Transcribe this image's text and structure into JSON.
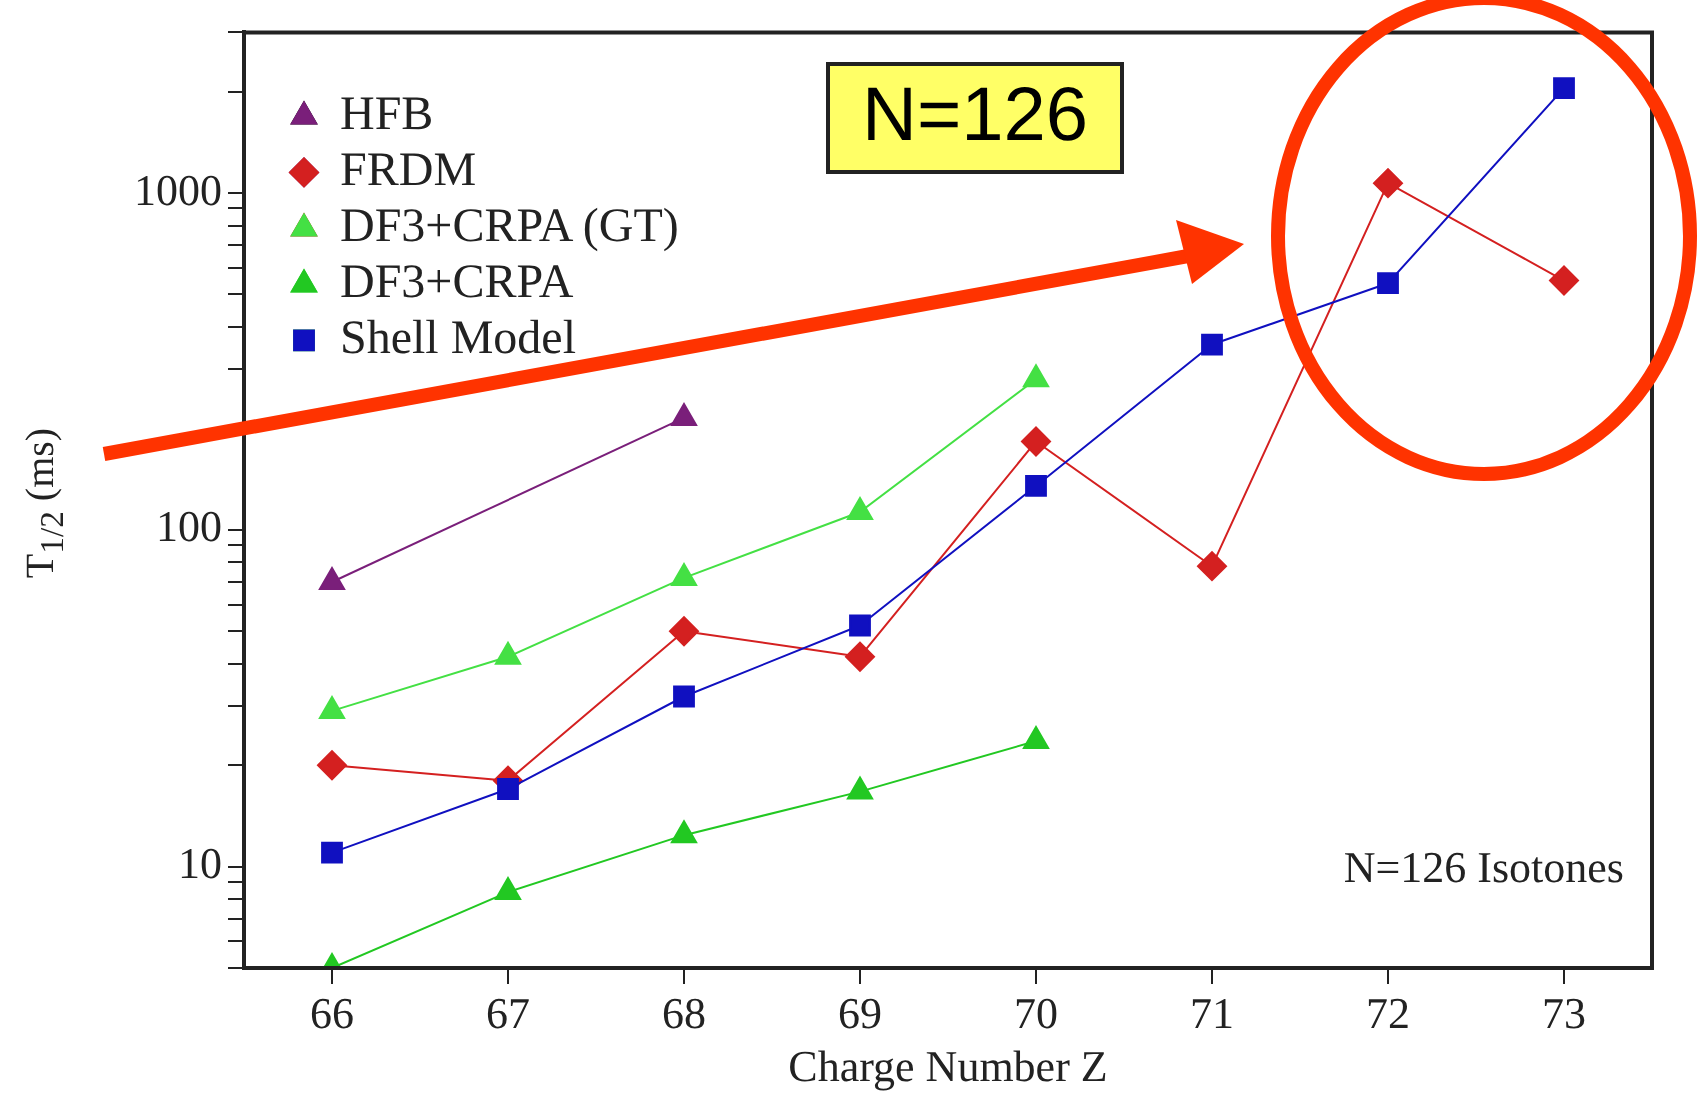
{
  "chart_data": {
    "type": "line",
    "xlabel": "Charge Number Z",
    "ylabel": "T$_{1/2}$ (ms)",
    "log": "y",
    "xlim": [
      65.5,
      73.5
    ],
    "xticks": [
      66,
      67,
      68,
      69,
      70,
      71,
      72,
      73
    ],
    "ylim": [
      5,
      3000
    ],
    "yticks": [
      {
        "value": 5,
        "label": null
      },
      {
        "value": 6,
        "label": null
      },
      {
        "value": 7,
        "label": null
      },
      {
        "value": 8,
        "label": null
      },
      {
        "value": 9,
        "label": null
      },
      10,
      {
        "value": 20,
        "label": null
      },
      {
        "value": 30,
        "label": null
      },
      {
        "value": 40,
        "label": null
      },
      {
        "value": 50,
        "label": null
      },
      {
        "value": 60,
        "label": null
      },
      {
        "value": 70,
        "label": null
      },
      {
        "value": 80,
        "label": null
      },
      {
        "value": 90,
        "label": null
      },
      100,
      {
        "value": 200,
        "label": null
      },
      {
        "value": 300,
        "label": null
      },
      {
        "value": 400,
        "label": null
      },
      {
        "value": 500,
        "label": null
      },
      {
        "value": 600,
        "label": null
      },
      {
        "value": 700,
        "label": null
      },
      {
        "value": 800,
        "label": null
      },
      {
        "value": 900,
        "label": null
      },
      1000,
      {
        "value": 2000,
        "label": null
      },
      {
        "value": 3000,
        "label": null
      }
    ],
    "grid": false,
    "legend": "top left",
    "line_style": "solid",
    "annotations": [
      "N=126",
      "N=126 Isotones"
    ],
    "series": [
      {
        "name": "HFB",
        "color": "#7a1f7a",
        "marker": "triangle",
        "x": [
          66,
          68
        ],
        "values": [
          70,
          215
        ]
      },
      {
        "name": "FRDM",
        "color": "#d42020",
        "marker": "diamond",
        "x": [
          66,
          67,
          68,
          69,
          70,
          71,
          72,
          73
        ],
        "values": [
          20,
          18,
          50,
          42,
          183,
          78,
          1070,
          550
        ]
      },
      {
        "name": "DF3+CRPA (GT)",
        "color": "#44e044",
        "marker": "triangle",
        "x": [
          66,
          67,
          68,
          69,
          70
        ],
        "values": [
          29,
          42,
          72,
          113,
          280
        ]
      },
      {
        "name": "DF3+CRPA",
        "color": "#22c822",
        "marker": "triangle",
        "x": [
          66,
          67,
          68,
          69,
          70
        ],
        "values": [
          5,
          8.4,
          12.4,
          16.7,
          23.6
        ]
      },
      {
        "name": "Shell Model",
        "color": "#1010c0",
        "marker": "square",
        "x": [
          66,
          67,
          68,
          69,
          70,
          71,
          72,
          73
        ],
        "values": [
          11,
          17,
          32,
          52,
          135,
          355,
          540,
          2050
        ]
      }
    ]
  }
}
